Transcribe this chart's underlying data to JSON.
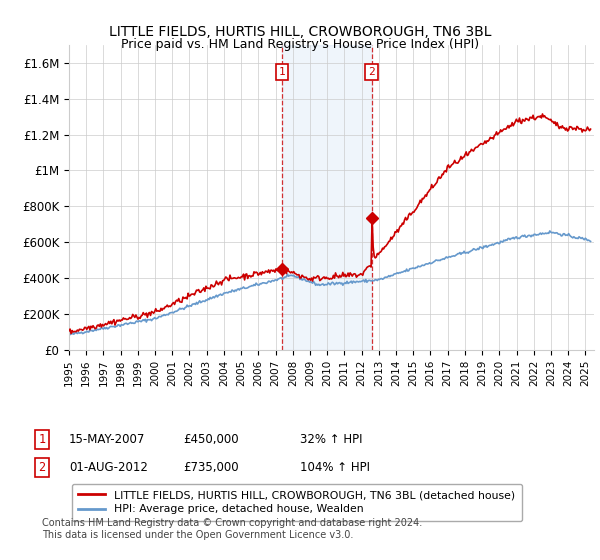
{
  "title": "LITTLE FIELDS, HURTIS HILL, CROWBOROUGH, TN6 3BL",
  "subtitle": "Price paid vs. HM Land Registry's House Price Index (HPI)",
  "ylabel_ticks": [
    "£0",
    "£200K",
    "£400K",
    "£600K",
    "£800K",
    "£1M",
    "£1.2M",
    "£1.4M",
    "£1.6M"
  ],
  "ytick_vals": [
    0,
    200000,
    400000,
    600000,
    800000,
    1000000,
    1200000,
    1400000,
    1600000
  ],
  "ylim": [
    0,
    1700000
  ],
  "xlim_start": 1995.0,
  "xlim_end": 2025.5,
  "hpi_color": "#6699cc",
  "price_color": "#cc0000",
  "transaction1_date": 2007.37,
  "transaction1_price": 450000,
  "transaction1_label": "1",
  "transaction2_date": 2012.58,
  "transaction2_price": 735000,
  "transaction2_label": "2",
  "legend_line1": "LITTLE FIELDS, HURTIS HILL, CROWBOROUGH, TN6 3BL (detached house)",
  "legend_line2": "HPI: Average price, detached house, Wealden",
  "annotation1_date": "15-MAY-2007",
  "annotation1_price": "£450,000",
  "annotation1_hpi": "32% ↑ HPI",
  "annotation2_date": "01-AUG-2012",
  "annotation2_price": "£735,000",
  "annotation2_hpi": "104% ↑ HPI",
  "footer": "Contains HM Land Registry data © Crown copyright and database right 2024.\nThis data is licensed under the Open Government Licence v3.0.",
  "shaded_region_start": 2007.37,
  "shaded_region_end": 2012.58,
  "background_color": "#ffffff",
  "grid_color": "#cccccc"
}
